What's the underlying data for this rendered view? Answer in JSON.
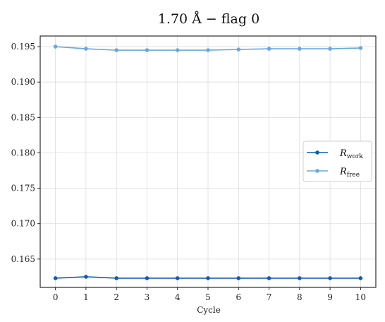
{
  "chart_data": {
    "type": "line",
    "title": "1.70 Å − flag 0",
    "xlabel": "Cycle",
    "ylabel": "",
    "x": [
      0,
      1,
      2,
      3,
      4,
      5,
      6,
      7,
      8,
      9,
      10
    ],
    "xlim": [
      -0.5,
      10.5
    ],
    "ylim": [
      0.161,
      0.1965
    ],
    "xticks": [
      "0",
      "1",
      "2",
      "3",
      "4",
      "5",
      "6",
      "7",
      "8",
      "9",
      "10"
    ],
    "yticks": [
      0.165,
      0.17,
      0.175,
      0.18,
      0.185,
      0.19,
      0.195
    ],
    "ytick_labels": [
      "0.165",
      "0.170",
      "0.175",
      "0.180",
      "0.185",
      "0.190",
      "0.195"
    ],
    "grid": true,
    "legend_position": "center-right",
    "series": [
      {
        "name": "R",
        "name_subscript": "work",
        "color": "#0b5fb0",
        "marker": "circle",
        "values": [
          0.1623,
          0.1625,
          0.1623,
          0.1623,
          0.1623,
          0.1623,
          0.1623,
          0.1623,
          0.1623,
          0.1623,
          0.1623
        ]
      },
      {
        "name": "R",
        "name_subscript": "free",
        "color": "#6aa8dc",
        "marker": "circle",
        "values": [
          0.195,
          0.1947,
          0.1945,
          0.1945,
          0.1945,
          0.1945,
          0.1946,
          0.1947,
          0.1947,
          0.1947,
          0.1948
        ]
      }
    ]
  }
}
